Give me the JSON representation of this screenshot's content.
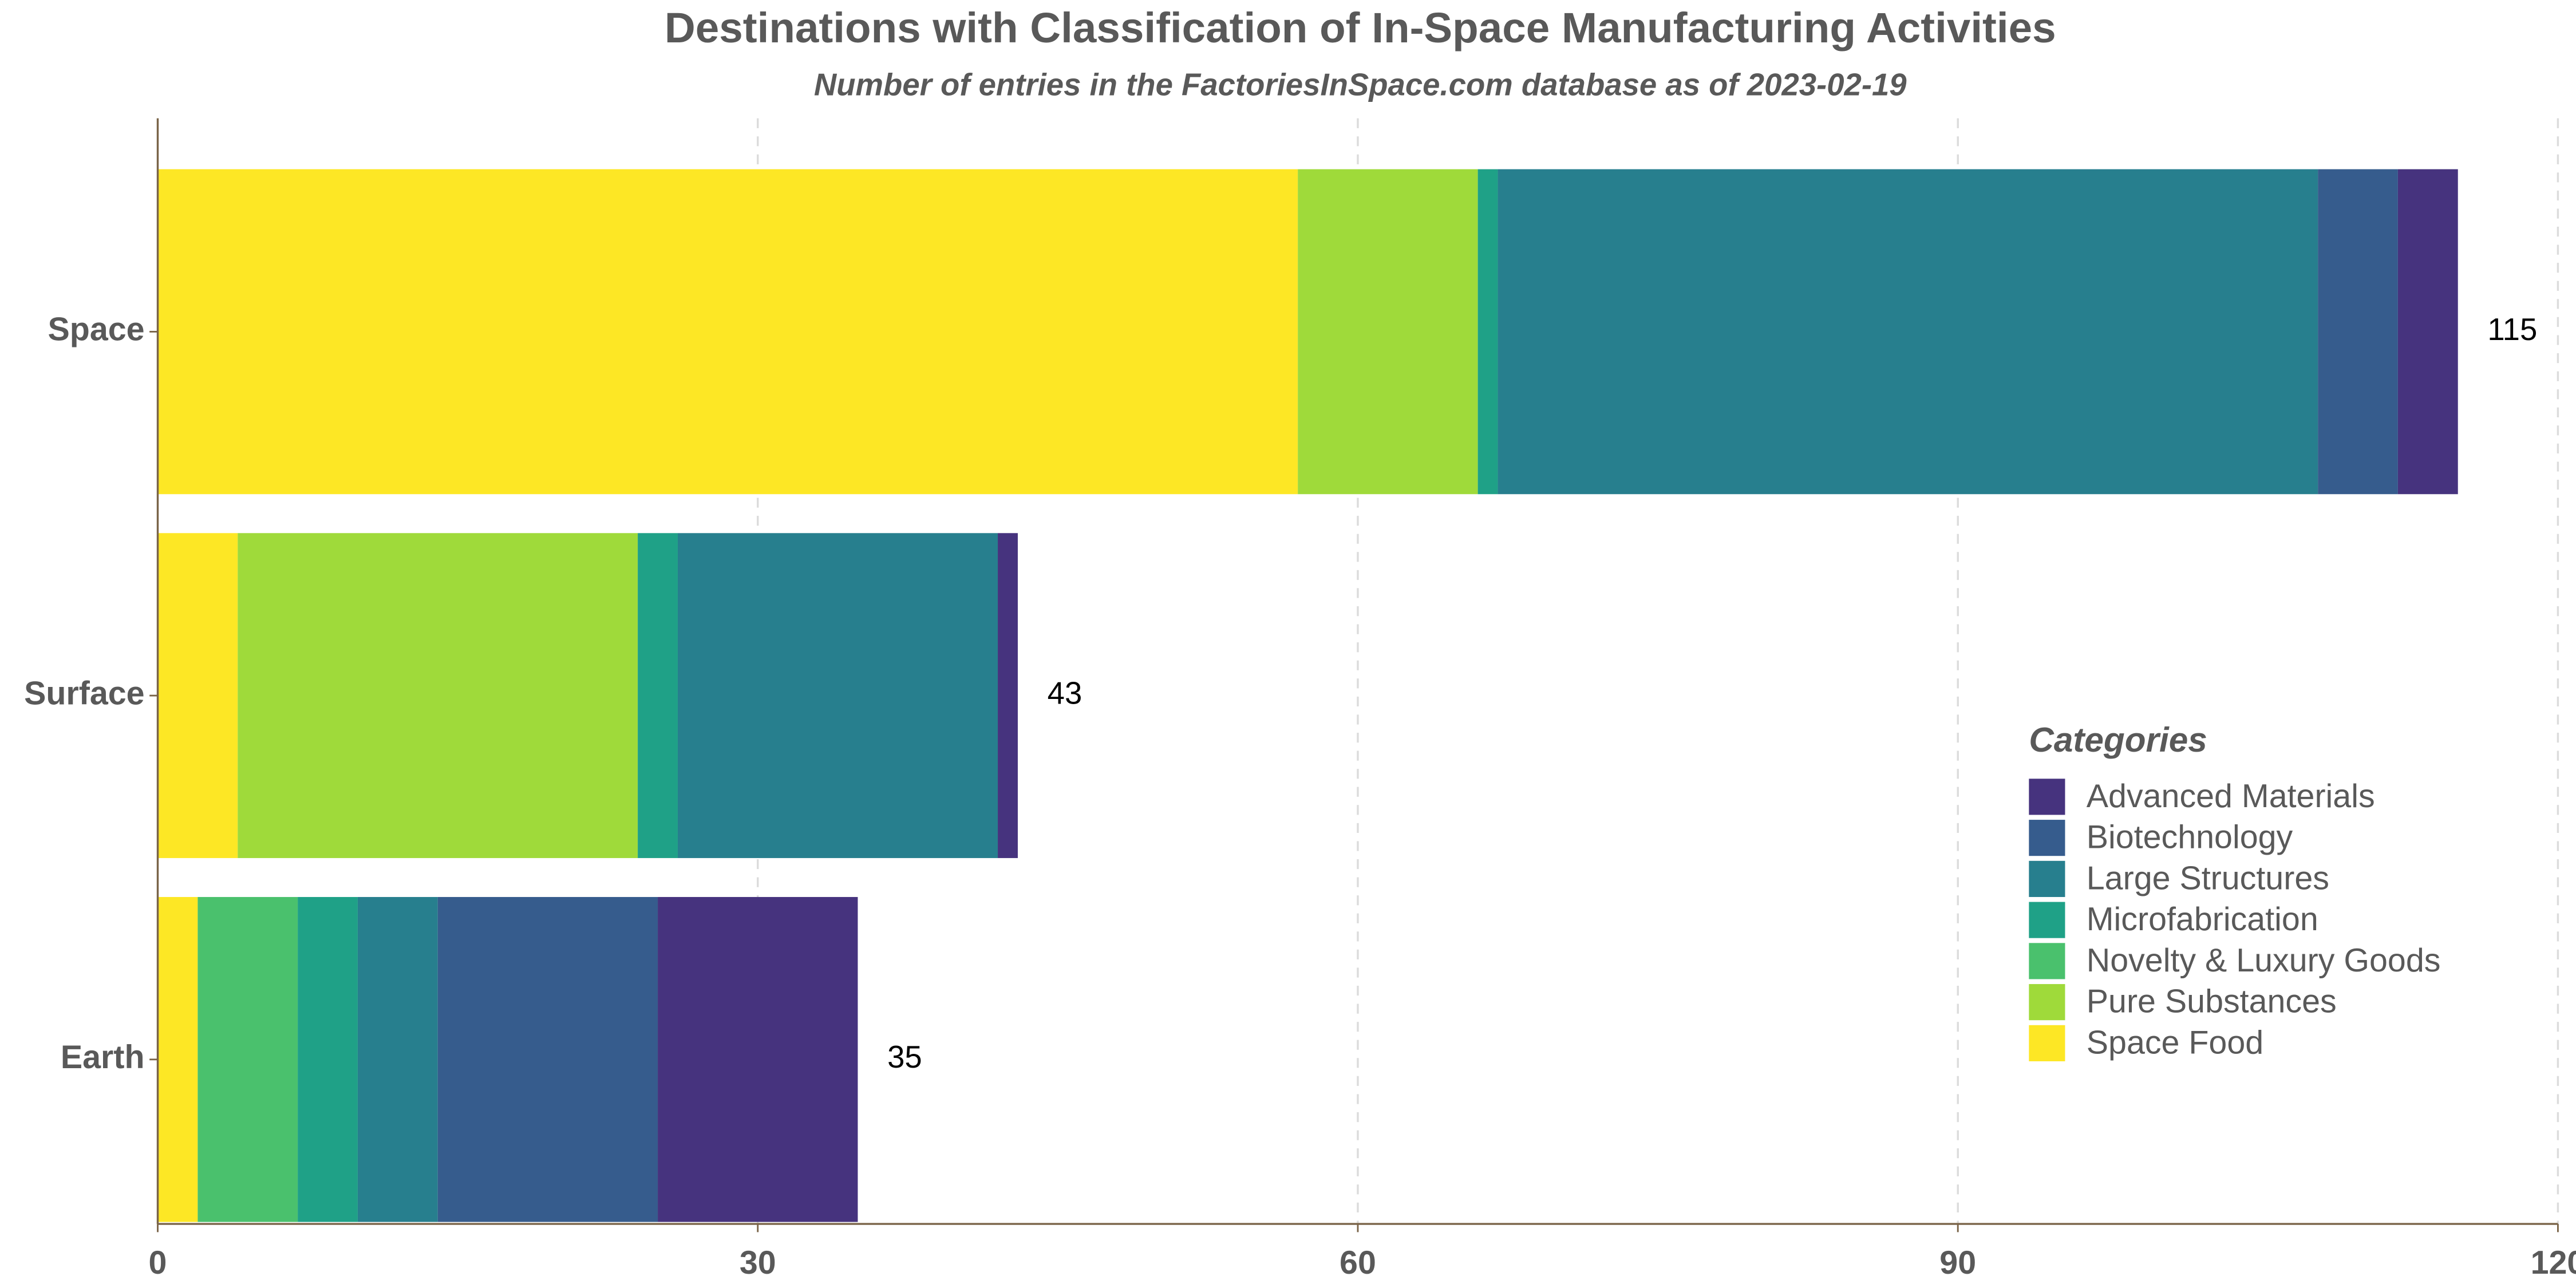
{
  "chart_data": {
    "type": "stacked-bar-horizontal",
    "title": "Destinations with Classification of In-Space Manufacturing Activities",
    "subtitle": "Number of entries in the FactoriesInSpace.com database as of 2023-02-19",
    "categories": [
      "Space",
      "Surface",
      "Earth"
    ],
    "series": [
      {
        "name": "Advanced Materials",
        "color": "#46337e",
        "values": [
          3,
          1,
          10
        ]
      },
      {
        "name": "Biotechnology",
        "color": "#365c8d",
        "values": [
          4,
          0,
          11
        ]
      },
      {
        "name": "Large Structures",
        "color": "#277f8e",
        "values": [
          41,
          16,
          4
        ]
      },
      {
        "name": "Microfabrication",
        "color": "#1fa187",
        "values": [
          1,
          2,
          3
        ]
      },
      {
        "name": "Novelty & Luxury Goods",
        "color": "#4ac16d",
        "values": [
          0,
          0,
          5
        ]
      },
      {
        "name": "Pure Substances",
        "color": "#9fda3a",
        "values": [
          9,
          20,
          0
        ]
      },
      {
        "name": "Space Food",
        "color": "#fde725",
        "values": [
          57,
          4,
          2
        ]
      }
    ],
    "totals": [
      115,
      43,
      35
    ],
    "legend_title": "Categories",
    "xlim": [
      0,
      120
    ],
    "xticks": [
      0,
      30,
      60,
      90,
      120
    ],
    "grid": true
  }
}
